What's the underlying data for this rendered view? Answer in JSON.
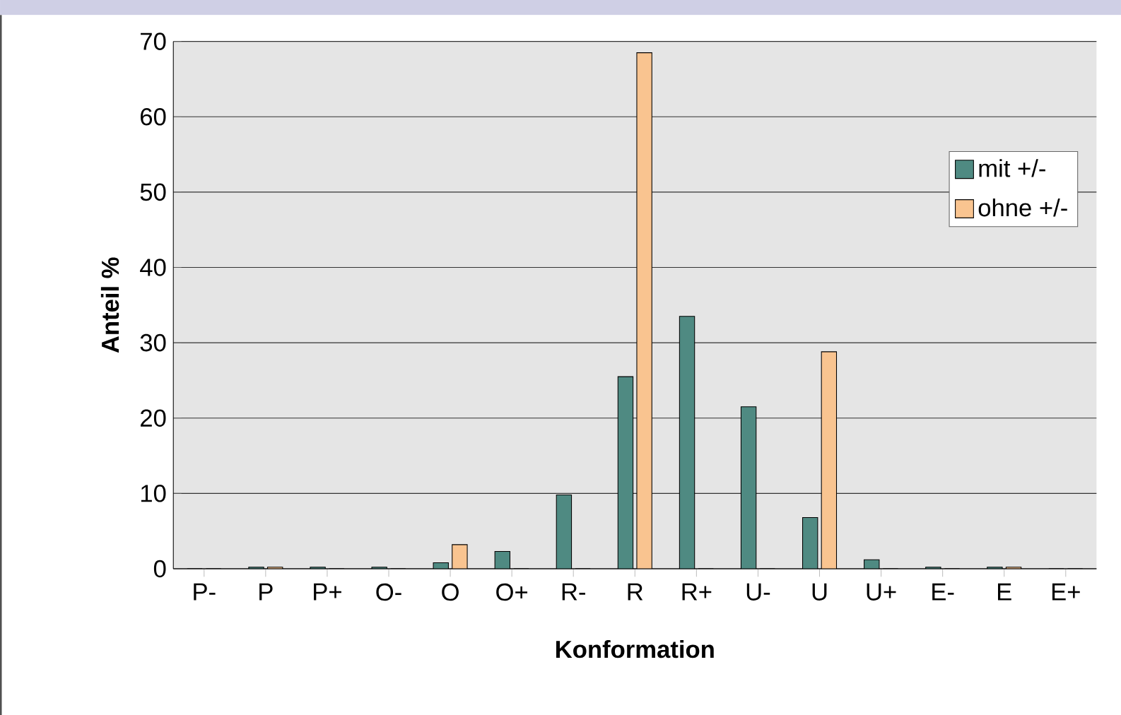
{
  "chart_data": {
    "type": "bar",
    "xlabel": "Konformation",
    "ylabel": "Anteil %",
    "categories": [
      "P-",
      "P",
      "P+",
      "O-",
      "O",
      "O+",
      "R-",
      "R",
      "R+",
      "U-",
      "U",
      "U+",
      "E-",
      "E",
      "E+"
    ],
    "series": [
      {
        "name": "mit +/-",
        "color": "#4f8a82",
        "values": [
          0,
          0.2,
          0.2,
          0.2,
          0.8,
          2.3,
          9.8,
          25.5,
          33.5,
          21.5,
          6.8,
          1.2,
          0.2,
          0.2,
          0
        ]
      },
      {
        "name": "ohne +/-",
        "color": "#f9c490",
        "values": [
          0,
          0.2,
          0,
          0,
          3.2,
          0,
          0,
          68.5,
          0,
          0,
          28.8,
          0,
          0,
          0.2,
          0
        ]
      }
    ],
    "ylim": [
      0,
      70
    ],
    "yticks": [
      0,
      10,
      20,
      30,
      40,
      50,
      60,
      70
    ],
    "grid": "y",
    "legend": "right"
  }
}
